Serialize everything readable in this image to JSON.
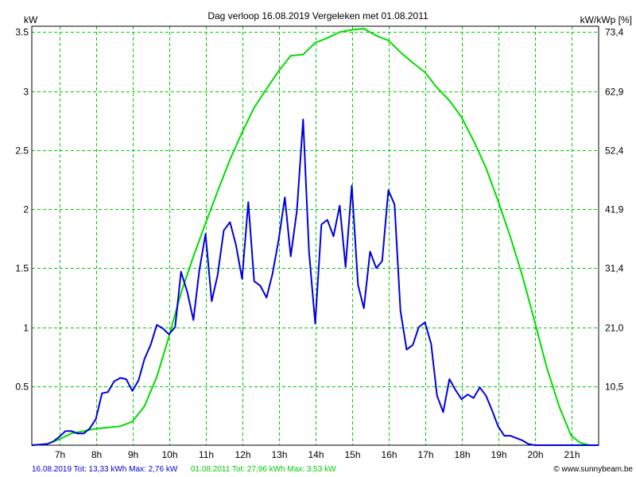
{
  "chart_data": {
    "type": "line",
    "title": "Dag  verloop 16.08.2019   Vergeleken met 01.08.2011",
    "ylabel_left": "kW",
    "ylabel_right": "kW/kWp [%]",
    "xlim": [
      6.25,
      21.75
    ],
    "ylim": [
      0,
      3.55
    ],
    "grid": true,
    "x_ticks": [
      7,
      8,
      9,
      10,
      11,
      12,
      13,
      14,
      15,
      16,
      17,
      18,
      19,
      20,
      21
    ],
    "x_tick_labels": [
      "7h",
      "8h",
      "9h",
      "10h",
      "11h",
      "12h",
      "13h",
      "14h",
      "15h",
      "16h",
      "17h",
      "18h",
      "19h",
      "20h",
      "21h"
    ],
    "y_ticks": [
      0.5,
      1,
      1.5,
      2,
      2.5,
      3,
      3.5
    ],
    "y_tick_labels": [
      "0.5",
      "1",
      "1.5",
      "2",
      "2.5",
      "3",
      "3.5"
    ],
    "y2_tick_labels": [
      "10,5",
      "21,0",
      "31,4",
      "41,9",
      "52,4",
      "62,9",
      "73,4"
    ],
    "series": [
      {
        "name": "16.08.2019",
        "color": "#0000dd",
        "x": [
          6.25,
          6.67,
          6.83,
          7.0,
          7.17,
          7.33,
          7.5,
          7.67,
          7.83,
          8.0,
          8.17,
          8.33,
          8.5,
          8.67,
          8.83,
          9.0,
          9.17,
          9.33,
          9.5,
          9.67,
          9.83,
          10.0,
          10.17,
          10.33,
          10.5,
          10.67,
          10.83,
          11.0,
          11.17,
          11.33,
          11.5,
          11.67,
          11.83,
          12.0,
          12.17,
          12.33,
          12.5,
          12.67,
          12.83,
          13.0,
          13.17,
          13.33,
          13.5,
          13.67,
          13.83,
          14.0,
          14.17,
          14.33,
          14.5,
          14.67,
          14.83,
          15.0,
          15.17,
          15.33,
          15.5,
          15.67,
          15.83,
          16.0,
          16.17,
          16.33,
          16.5,
          16.67,
          16.83,
          17.0,
          17.17,
          17.33,
          17.5,
          17.67,
          17.83,
          18.0,
          18.17,
          18.33,
          18.5,
          18.67,
          18.83,
          19.0,
          19.17,
          19.33,
          19.5,
          19.67,
          19.83,
          20.0,
          20.17,
          21.75
        ],
        "y": [
          0,
          0.01,
          0.03,
          0.07,
          0.12,
          0.12,
          0.1,
          0.1,
          0.14,
          0.22,
          0.44,
          0.45,
          0.54,
          0.57,
          0.56,
          0.46,
          0.55,
          0.73,
          0.85,
          1.02,
          0.99,
          0.94,
          1.0,
          1.47,
          1.3,
          1.06,
          1.48,
          1.79,
          1.22,
          1.44,
          1.82,
          1.89,
          1.7,
          1.41,
          2.06,
          1.39,
          1.35,
          1.25,
          1.45,
          1.74,
          2.1,
          1.6,
          1.99,
          2.76,
          1.64,
          1.03,
          1.87,
          1.91,
          1.77,
          2.03,
          1.51,
          2.2,
          1.36,
          1.16,
          1.64,
          1.5,
          1.56,
          2.16,
          2.04,
          1.14,
          0.81,
          0.85,
          1.0,
          1.04,
          0.86,
          0.42,
          0.28,
          0.56,
          0.47,
          0.39,
          0.43,
          0.4,
          0.49,
          0.42,
          0.3,
          0.16,
          0.08,
          0.08,
          0.06,
          0.04,
          0.01,
          0,
          0,
          0
        ]
      },
      {
        "name": "01.08.2011",
        "color": "#00dd00",
        "x": [
          6.25,
          6.67,
          7.0,
          7.33,
          7.67,
          8.0,
          8.33,
          8.67,
          9.0,
          9.33,
          9.67,
          10.0,
          10.33,
          10.67,
          11.0,
          11.33,
          11.67,
          12.0,
          12.33,
          12.67,
          13.0,
          13.33,
          13.67,
          14.0,
          14.33,
          14.67,
          15.0,
          15.33,
          15.67,
          16.0,
          16.33,
          16.67,
          17.0,
          17.33,
          17.67,
          18.0,
          18.33,
          18.67,
          19.0,
          19.33,
          19.67,
          20.0,
          20.33,
          20.67,
          21.0,
          21.25,
          21.5,
          21.75
        ],
        "y": [
          0,
          0.01,
          0.05,
          0.1,
          0.12,
          0.14,
          0.15,
          0.16,
          0.2,
          0.33,
          0.58,
          0.92,
          1.29,
          1.6,
          1.88,
          2.15,
          2.42,
          2.65,
          2.86,
          3.02,
          3.17,
          3.3,
          3.31,
          3.41,
          3.45,
          3.5,
          3.52,
          3.53,
          3.47,
          3.43,
          3.33,
          3.24,
          3.16,
          3.03,
          2.92,
          2.78,
          2.58,
          2.35,
          2.07,
          1.77,
          1.43,
          1.05,
          0.66,
          0.33,
          0.08,
          0.02,
          0,
          0
        ]
      }
    ]
  },
  "footer": {
    "series1_summary": "16.08.2019 Tot: 13,33 kWh Max: 2,76 kW",
    "series2_summary": "01.08.2011 Tot: 27,96 kWh Max: 3,53 kW",
    "credit": "© www.sunnybeam.be"
  }
}
